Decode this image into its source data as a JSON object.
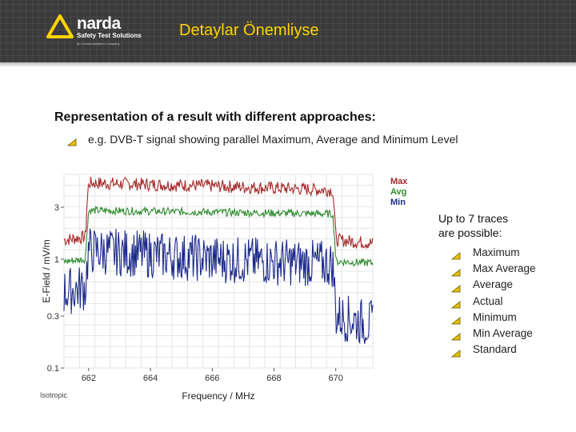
{
  "header": {
    "title": "Detaylar Önemliyse",
    "logo": {
      "name": "narda",
      "tagline": "Safety Test Solutions",
      "small_text": "an Communications Company"
    }
  },
  "main": {
    "heading": "Representation of a result with different approaches:",
    "example": "e.g. DVB-T signal showing parallel Maximum, Average and Minimum Level"
  },
  "side": {
    "title_line1": "Up to 7 traces",
    "title_line2": "are possible:",
    "traces": [
      "Maximum",
      "Max Average",
      "Average",
      "Actual",
      "Minimum",
      "Min Average",
      "Standard"
    ]
  },
  "colors": {
    "max": "#a52a2a",
    "avg": "#2e8b2e",
    "min": "#1c2a8a",
    "title": "#ffd400"
  },
  "chart_data": {
    "type": "line",
    "title": "",
    "xlabel": "Frequency / MHz",
    "ylabel": "E-Field / mV/m",
    "corner_label": "Isotropic",
    "x_ticks": [
      "662",
      "664",
      "666",
      "668",
      "670"
    ],
    "y_ticks": [
      "3",
      "1",
      "0.3",
      "0.1"
    ],
    "xlim": [
      661.2,
      671.2
    ],
    "ylim": [
      0.1,
      6
    ],
    "y_scale": "log",
    "legend": [
      "Max",
      "Avg",
      "Min"
    ],
    "series": [
      {
        "name": "Max",
        "x": [
          661.2,
          661.9,
          662.0,
          666,
          669.9,
          670.0,
          671.2
        ],
        "values": [
          1.5,
          1.6,
          5.0,
          4.7,
          4.3,
          1.5,
          1.4
        ]
      },
      {
        "name": "Avg",
        "x": [
          661.2,
          661.9,
          662.0,
          666,
          669.9,
          670.0,
          671.2
        ],
        "values": [
          0.95,
          1.0,
          2.8,
          2.7,
          2.6,
          0.95,
          0.92
        ]
      },
      {
        "name": "Min",
        "x": [
          661.2,
          661.9,
          662.0,
          666,
          669.9,
          670.0,
          671.2
        ],
        "values": [
          0.5,
          0.55,
          1.2,
          1.0,
          0.9,
          0.3,
          0.25
        ]
      }
    ]
  }
}
